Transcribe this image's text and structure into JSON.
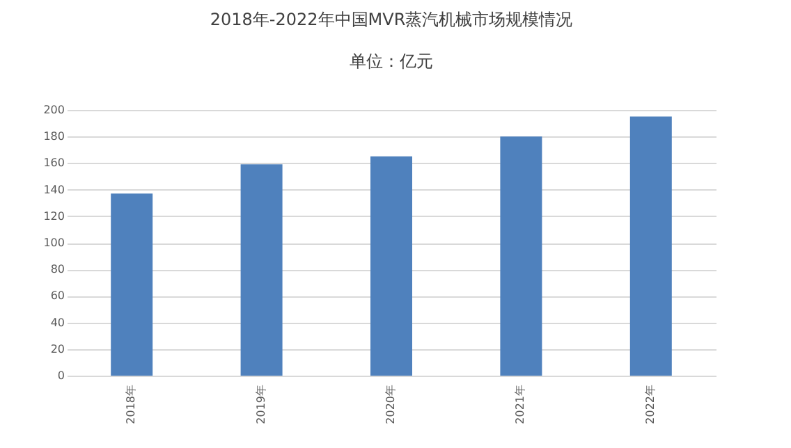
{
  "chart_data": {
    "type": "bar",
    "title": "2018年-2022年中国MVR蒸汽机械市场规模情况",
    "subtitle": "单位：亿元",
    "categories": [
      "2018年",
      "2019年",
      "2020年",
      "2021年",
      "2022年"
    ],
    "values": [
      137,
      159,
      165,
      180,
      195
    ],
    "color": "#4f81bd",
    "ylim": [
      0,
      200
    ],
    "yticks": [
      0,
      20,
      40,
      60,
      80,
      100,
      120,
      140,
      160,
      180,
      200
    ],
    "grid": "y"
  }
}
